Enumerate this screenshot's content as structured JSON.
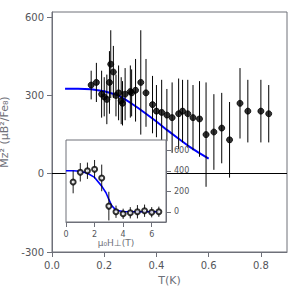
{
  "chart_data": [
    {
      "type": "scatter",
      "xlabel": "T(K)",
      "ylabel": "Mz² (μB²/Fe₈)",
      "xlim": [
        0.0,
        0.9
      ],
      "ylim": [
        -300,
        620
      ],
      "xticks": [
        {
          "value": 0.0,
          "label": "0.0"
        },
        0.2,
        0.4,
        0.6,
        0.8
      ],
      "yticks": [
        -300,
        0,
        300,
        600
      ],
      "grid": false,
      "hline": 0,
      "series": [
        {
          "type": "scatter",
          "color": "#000000",
          "marker": "circle",
          "x": [
            0.15,
            0.17,
            0.19,
            0.2,
            0.21,
            0.22,
            0.225,
            0.235,
            0.245,
            0.255,
            0.265,
            0.27,
            0.28,
            0.3,
            0.305,
            0.32,
            0.34,
            0.36,
            0.385,
            0.4,
            0.42,
            0.44,
            0.46,
            0.485,
            0.5,
            0.52,
            0.54,
            0.565,
            0.59,
            0.62,
            0.65,
            0.68,
            0.72,
            0.75,
            0.8,
            0.83
          ],
          "values": [
            340,
            350,
            305,
            295,
            285,
            350,
            420,
            390,
            300,
            310,
            280,
            270,
            305,
            315,
            310,
            320,
            350,
            310,
            265,
            240,
            235,
            225,
            215,
            230,
            240,
            230,
            215,
            210,
            150,
            160,
            175,
            130,
            270,
            240,
            240,
            230
          ],
          "err": [
            55,
            75,
            90,
            75,
            95,
            120,
            130,
            100,
            80,
            105,
            90,
            85,
            100,
            100,
            90,
            120,
            200,
            130,
            110,
            100,
            125,
            100,
            135,
            135,
            120,
            130,
            125,
            145,
            200,
            145,
            135,
            145,
            135,
            120,
            120,
            110
          ]
        },
        {
          "type": "line",
          "color": "#0000ff",
          "line_style": "solid",
          "x": [
            0.05,
            0.1,
            0.15,
            0.2,
            0.25,
            0.28,
            0.3,
            0.33,
            0.36,
            0.4,
            0.44,
            0.48,
            0.52,
            0.56,
            0.6
          ],
          "values": [
            326,
            326,
            324,
            316,
            302,
            285,
            272,
            252,
            230,
            200,
            168,
            138,
            108,
            82,
            58
          ]
        }
      ]
    },
    {
      "type": "scatter",
      "xlabel": "μ₀H⊥(T)",
      "xlim": [
        0,
        7
      ],
      "ylim": [
        -100,
        700
      ],
      "xticks": [
        0,
        2,
        4,
        6
      ],
      "yticks": [
        0,
        200,
        400,
        600
      ],
      "grid": false,
      "hline": 0,
      "series": [
        {
          "type": "scatter",
          "color": "#000000",
          "marker": "open_circle",
          "x": [
            0.5,
            1.0,
            1.5,
            2.0,
            2.5,
            3.0,
            3.5,
            4.0,
            4.5,
            5.0,
            5.5,
            6.0,
            6.5
          ],
          "values": [
            290,
            385,
            400,
            415,
            330,
            55,
            0,
            -20,
            -10,
            0,
            10,
            -5,
            0
          ],
          "err": [
            110,
            90,
            80,
            90,
            130,
            140,
            60,
            50,
            55,
            65,
            60,
            50,
            50
          ]
        },
        {
          "type": "line",
          "color": "#0000ff",
          "line_style": "solid",
          "x": [
            0.0,
            0.5,
            1.0,
            1.5,
            2.0,
            2.5,
            2.8,
            3.0,
            3.2,
            3.5,
            4.0,
            5.0,
            6.5
          ],
          "values": [
            400,
            400,
            395,
            375,
            335,
            250,
            185,
            120,
            60,
            15,
            2,
            0,
            0
          ]
        }
      ]
    }
  ]
}
